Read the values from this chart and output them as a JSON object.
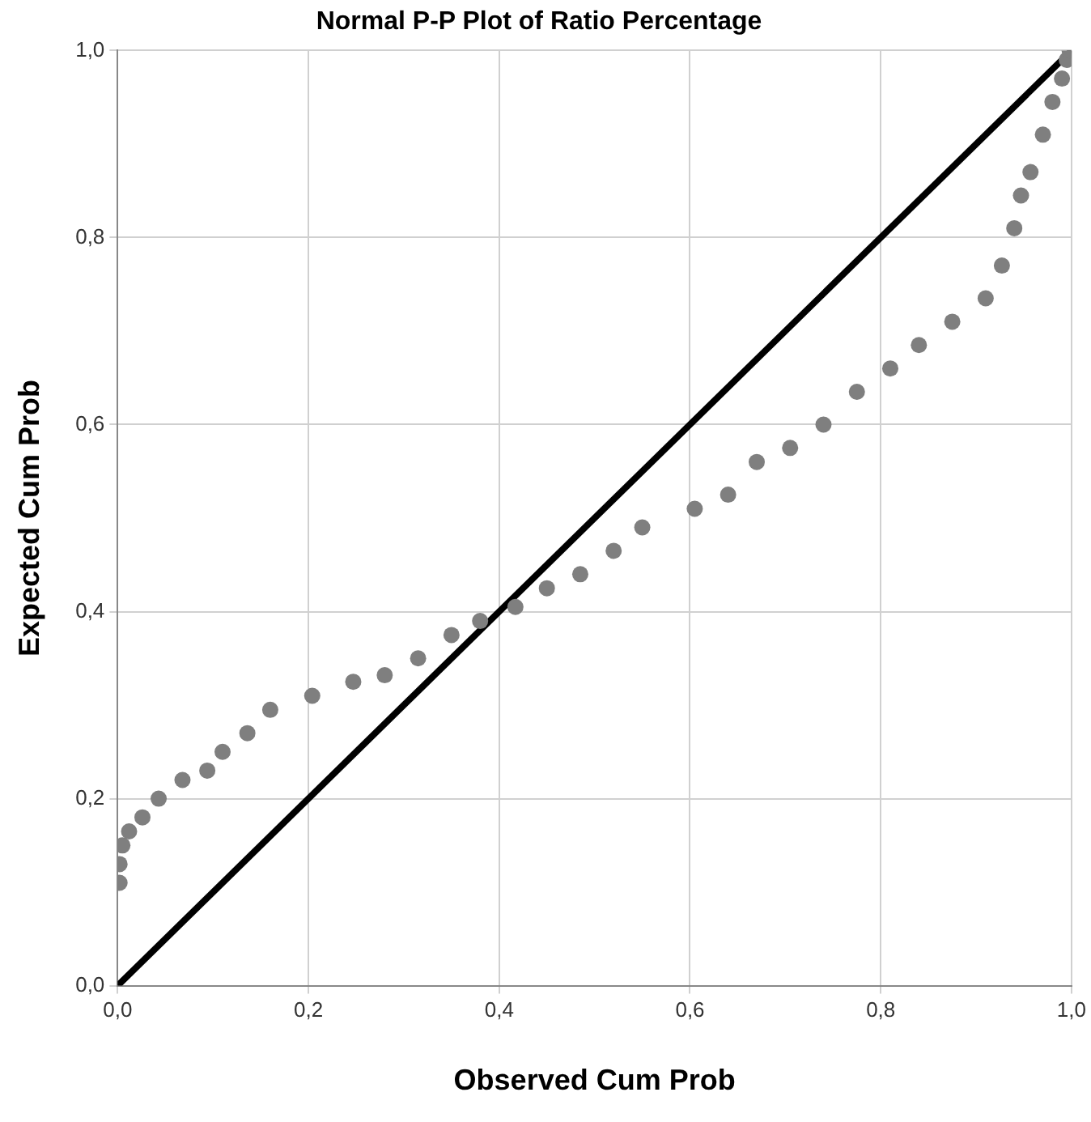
{
  "chart_data": {
    "type": "scatter",
    "title": "Normal P-P Plot of Ratio Percentage",
    "xlabel": "Observed Cum Prob",
    "ylabel": "Expected Cum Prob",
    "xlim": [
      0,
      1
    ],
    "ylim": [
      0,
      1
    ],
    "xticks": [
      {
        "value": 0,
        "label": "0,0"
      },
      {
        "value": 0.2,
        "label": "0,2"
      },
      {
        "value": 0.4,
        "label": "0,4"
      },
      {
        "value": 0.6,
        "label": "0,6"
      },
      {
        "value": 0.8,
        "label": "0,8"
      },
      {
        "value": 1,
        "label": "1,0"
      }
    ],
    "yticks": [
      {
        "value": 0,
        "label": "0,0"
      },
      {
        "value": 0.2,
        "label": "0,2"
      },
      {
        "value": 0.4,
        "label": "0,4"
      },
      {
        "value": 0.6,
        "label": "0,6"
      },
      {
        "value": 0.8,
        "label": "0,8"
      },
      {
        "value": 1,
        "label": "1,0"
      }
    ],
    "grid": true,
    "marker": "circle",
    "series": [
      {
        "color": "#7f7f7f",
        "x": [
          0.002,
          0.002,
          0.005,
          0.012,
          0.026,
          0.043,
          0.068,
          0.094,
          0.11,
          0.136,
          0.16,
          0.204,
          0.247,
          0.28,
          0.315,
          0.35,
          0.38,
          0.417,
          0.45,
          0.485,
          0.52,
          0.55,
          0.605,
          0.64,
          0.67,
          0.705,
          0.74,
          0.775,
          0.81,
          0.84,
          0.875,
          0.91,
          0.927,
          0.94,
          0.947,
          0.957,
          0.97,
          0.98,
          0.99,
          0.995,
          0.998
        ],
        "values": [
          0.11,
          0.13,
          0.15,
          0.165,
          0.18,
          0.2,
          0.22,
          0.23,
          0.25,
          0.27,
          0.295,
          0.31,
          0.325,
          0.332,
          0.35,
          0.375,
          0.39,
          0.405,
          0.425,
          0.44,
          0.465,
          0.49,
          0.51,
          0.525,
          0.56,
          0.575,
          0.6,
          0.635,
          0.66,
          0.685,
          0.71,
          0.735,
          0.77,
          0.81,
          0.845,
          0.87,
          0.91,
          0.945,
          0.97,
          0.99,
          1.0
        ]
      },
      {
        "type": "line",
        "color": "#000000",
        "x": [
          0,
          1
        ],
        "values": [
          0,
          1
        ],
        "marker": "none"
      }
    ]
  }
}
